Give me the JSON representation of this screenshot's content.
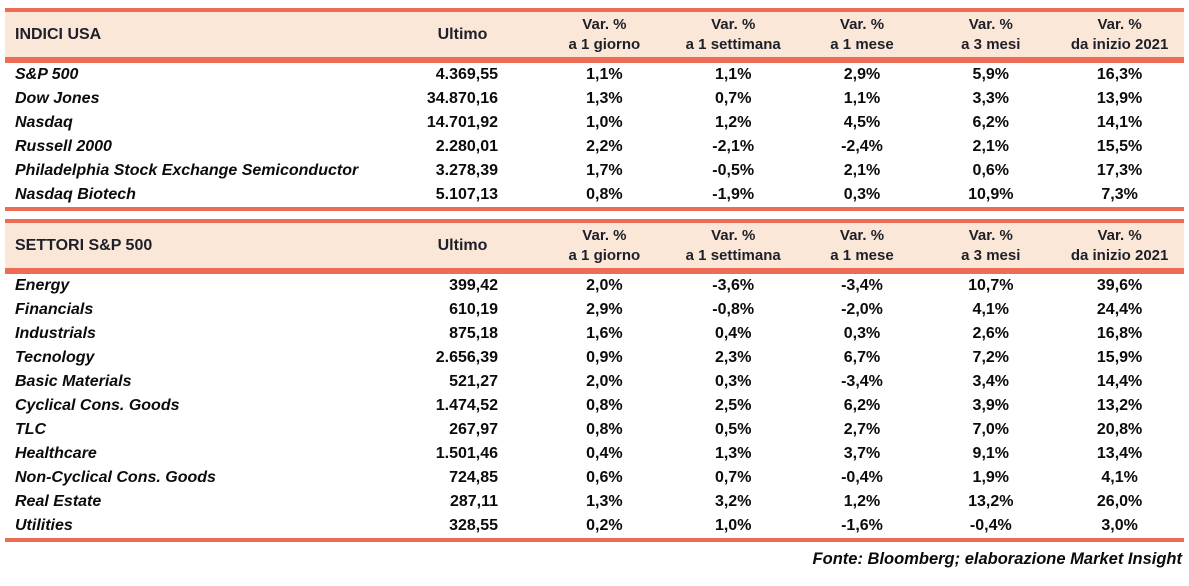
{
  "colors": {
    "accent": "#ED6C55",
    "header_bg": "#FBE7D7",
    "header_text": "#1E2029",
    "body_text": "#0B0B0D"
  },
  "table": {
    "columns": {
      "ultimo_label": "Ultimo",
      "var_label": "Var. %",
      "periods": [
        "a 1 giorno",
        "a 1 settimana",
        "a 1 mese",
        "a 3 mesi",
        "da inizio 2021"
      ]
    },
    "sections": [
      {
        "title": "INDICI USA",
        "rows": [
          {
            "name": "S&P 500",
            "ultimo": "4.369,55",
            "vars": [
              "1,1%",
              "1,1%",
              "2,9%",
              "5,9%",
              "16,3%"
            ]
          },
          {
            "name": "Dow Jones",
            "ultimo": "34.870,16",
            "vars": [
              "1,3%",
              "0,7%",
              "1,1%",
              "3,3%",
              "13,9%"
            ]
          },
          {
            "name": "Nasdaq",
            "ultimo": "14.701,92",
            "vars": [
              "1,0%",
              "1,2%",
              "4,5%",
              "6,2%",
              "14,1%"
            ]
          },
          {
            "name": "Russell 2000",
            "ultimo": "2.280,01",
            "vars": [
              "2,2%",
              "-2,1%",
              "-2,4%",
              "2,1%",
              "15,5%"
            ]
          },
          {
            "name": "Philadelphia Stock Exchange Semiconductor",
            "ultimo": "3.278,39",
            "vars": [
              "1,7%",
              "-0,5%",
              "2,1%",
              "0,6%",
              "17,3%"
            ]
          },
          {
            "name": "Nasdaq Biotech",
            "ultimo": "5.107,13",
            "vars": [
              "0,8%",
              "-1,9%",
              "0,3%",
              "10,9%",
              "7,3%"
            ]
          }
        ]
      },
      {
        "title": "SETTORI S&P 500",
        "rows": [
          {
            "name": "Energy",
            "ultimo": "399,42",
            "vars": [
              "2,0%",
              "-3,6%",
              "-3,4%",
              "10,7%",
              "39,6%"
            ]
          },
          {
            "name": "Financials",
            "ultimo": "610,19",
            "vars": [
              "2,9%",
              "-0,8%",
              "-2,0%",
              "4,1%",
              "24,4%"
            ]
          },
          {
            "name": "Industrials",
            "ultimo": "875,18",
            "vars": [
              "1,6%",
              "0,4%",
              "0,3%",
              "2,6%",
              "16,8%"
            ]
          },
          {
            "name": "Tecnology",
            "ultimo": "2.656,39",
            "vars": [
              "0,9%",
              "2,3%",
              "6,7%",
              "7,2%",
              "15,9%"
            ]
          },
          {
            "name": "Basic Materials",
            "ultimo": "521,27",
            "vars": [
              "2,0%",
              "0,3%",
              "-3,4%",
              "3,4%",
              "14,4%"
            ]
          },
          {
            "name": "Cyclical Cons. Goods",
            "ultimo": "1.474,52",
            "vars": [
              "0,8%",
              "2,5%",
              "6,2%",
              "3,9%",
              "13,2%"
            ]
          },
          {
            "name": "TLC",
            "ultimo": "267,97",
            "vars": [
              "0,8%",
              "0,5%",
              "2,7%",
              "7,0%",
              "20,8%"
            ]
          },
          {
            "name": "Healthcare",
            "ultimo": "1.501,46",
            "vars": [
              "0,4%",
              "1,3%",
              "3,7%",
              "9,1%",
              "13,4%"
            ]
          },
          {
            "name": "Non-Cyclical Cons. Goods",
            "ultimo": "724,85",
            "vars": [
              "0,6%",
              "0,7%",
              "-0,4%",
              "1,9%",
              "4,1%"
            ]
          },
          {
            "name": "Real Estate",
            "ultimo": "287,11",
            "vars": [
              "1,3%",
              "3,2%",
              "1,2%",
              "13,2%",
              "26,0%"
            ]
          },
          {
            "name": "Utilities",
            "ultimo": "328,55",
            "vars": [
              "0,2%",
              "1,0%",
              "-1,6%",
              "-0,4%",
              "3,0%"
            ]
          }
        ]
      }
    ],
    "footer": "Fonte: Bloomberg; elaborazione Market Insight"
  }
}
